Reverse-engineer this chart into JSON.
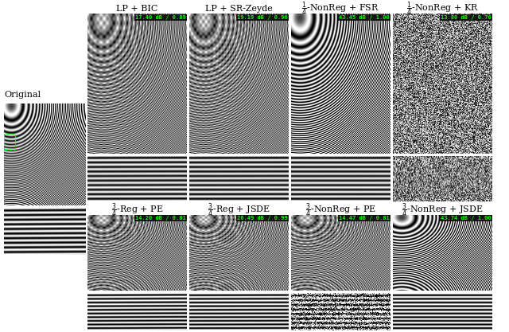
{
  "titles_row1": [
    "LP + BIC",
    "LP + SR-Zeyde",
    "$\\frac{1}{4}$-NonReg + FSR",
    "$\\frac{1}{4}$-NonReg + KR"
  ],
  "titles_row2": [
    "$\\frac{3}{4}$-Reg + PE",
    "$\\frac{3}{4}$-Reg + JSDE",
    "$\\frac{3}{4}$-NonReg + PE",
    "$\\frac{3}{4}$-NonReg + JSDE"
  ],
  "row1_labels": [
    "17.40 dB / 0.89",
    "19.19 dB / 0.96",
    "43.45 dB / 1.00",
    "13.80 dB / 0.76"
  ],
  "row2_labels": [
    "14.20 dB / 0.81",
    "26.49 dB / 0.99",
    "14.47 dB / 0.81",
    "43.74 dB / 1.00"
  ],
  "original_label": "Original",
  "bg_color": "#ffffff",
  "label_text_color": "#00ff00",
  "title_fontsize": 8,
  "label_fontsize": 5.0,
  "original_fontsize": 8
}
